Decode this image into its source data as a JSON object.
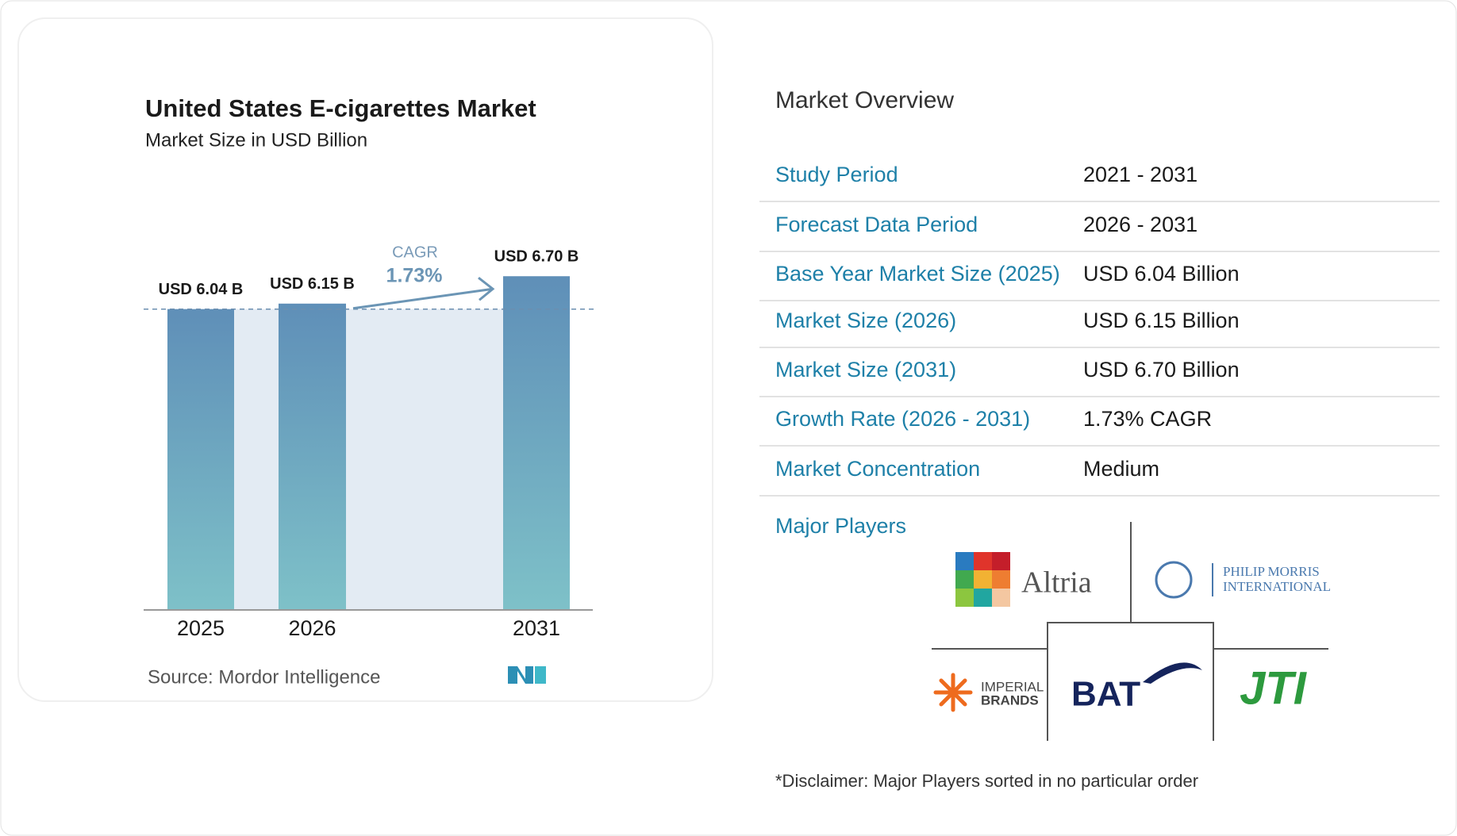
{
  "chart_data": {
    "type": "bar",
    "title": "United States E-cigarettes Market",
    "subtitle": "Market Size in USD Billion",
    "categories": [
      "2025",
      "2026",
      "2031"
    ],
    "values": [
      6.04,
      6.15,
      6.7
    ],
    "value_labels": [
      "USD 6.04 B",
      "USD 6.15 B",
      "USD 6.70 B"
    ],
    "annotations": [
      "CAGR",
      "1.73%"
    ],
    "source": "Source:  Mordor Intelligence"
  },
  "overview": {
    "title": "Market Overview",
    "rows": [
      [
        "Study Period",
        "2021 - 2031"
      ],
      [
        "Forecast Data Period",
        "2026 - 2031"
      ],
      [
        "Base Year Market Size (2025)",
        "USD 6.04 Billion"
      ],
      [
        "Market Size (2026)",
        "USD 6.15 Billion"
      ],
      [
        "Market Size (2031)",
        "USD 6.70 Billion"
      ],
      [
        "Growth Rate (2026 - 2031)",
        "1.73% CAGR"
      ],
      [
        "Market Concentration",
        "Medium"
      ]
    ],
    "players_title": "Major Players",
    "players": [
      "Altria",
      "PHILIP MORRIS",
      "INTERNATIONAL",
      "IMPERIAL",
      "BRANDS",
      "BAT",
      "JTI"
    ],
    "disclaimer": "*Disclaimer: Major Players sorted in no particular order"
  }
}
